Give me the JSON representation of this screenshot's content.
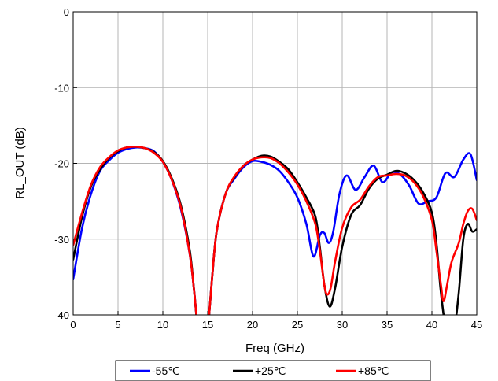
{
  "chart_data": {
    "type": "line",
    "title": "",
    "xlabel": "Freq (GHz)",
    "ylabel": "RL_OUT (dB)",
    "xlim": [
      0,
      45
    ],
    "ylim": [
      -40,
      0
    ],
    "xticks": [
      0,
      5,
      10,
      15,
      20,
      25,
      30,
      35,
      40,
      45
    ],
    "yticks": [
      0,
      -10,
      -20,
      -30,
      -40
    ],
    "grid": true,
    "legend_position": "bottom",
    "series": [
      {
        "name": "-55℃",
        "color": "#0000ff",
        "x": [
          0,
          1,
          2,
          3,
          4,
          5,
          6,
          7,
          8,
          9,
          10,
          11,
          12,
          13,
          13.5,
          14,
          14.5,
          15,
          15.5,
          16,
          17,
          18,
          19,
          20,
          21,
          22,
          23,
          24,
          25,
          26,
          26.8,
          27.5,
          28,
          28.5,
          29,
          29.7,
          30.5,
          31.5,
          32.5,
          33.5,
          34.5,
          35.5,
          36.5,
          37.5,
          38.5,
          39.5,
          40.5,
          41.5,
          42.5,
          43.5,
          44.3,
          45
        ],
        "y": [
          -35.3,
          -28.5,
          -24.0,
          -21.0,
          -19.6,
          -18.6,
          -18.1,
          -17.9,
          -18.0,
          -18.4,
          -19.8,
          -22.2,
          -26.0,
          -32.0,
          -37.0,
          -43.0,
          -45.0,
          -42.0,
          -35.0,
          -29.0,
          -24.0,
          -22.0,
          -20.5,
          -19.7,
          -19.8,
          -20.2,
          -21.0,
          -22.5,
          -24.5,
          -28.0,
          -32.3,
          -29.5,
          -29.2,
          -30.5,
          -29.0,
          -24.0,
          -21.6,
          -23.5,
          -21.8,
          -20.3,
          -22.5,
          -21.2,
          -21.5,
          -23.0,
          -25.3,
          -25.0,
          -24.5,
          -21.3,
          -21.8,
          -19.5,
          -18.8,
          -22.2
        ]
      },
      {
        "name": "+25℃",
        "color": "#000000",
        "x": [
          0,
          1,
          2,
          3,
          4,
          5,
          6,
          7,
          8,
          9,
          10,
          11,
          12,
          13,
          13.5,
          14,
          14.5,
          15,
          15.5,
          16,
          17,
          18,
          19,
          20,
          21,
          22,
          23,
          24,
          25,
          26,
          27,
          27.5,
          28,
          28.6,
          29.2,
          30,
          31,
          32,
          33,
          34,
          35,
          36,
          37,
          38,
          39,
          40,
          40.5,
          41,
          41.5,
          42,
          42.5,
          43,
          43.5,
          44,
          44.5,
          45
        ],
        "y": [
          -32.7,
          -27.0,
          -23.0,
          -20.8,
          -19.3,
          -18.4,
          -17.9,
          -17.8,
          -18.0,
          -18.5,
          -19.7,
          -22.0,
          -25.5,
          -31.5,
          -37.0,
          -43.0,
          -45.0,
          -42.0,
          -35.0,
          -29.0,
          -24.0,
          -21.8,
          -20.3,
          -19.5,
          -19.0,
          -19.1,
          -19.8,
          -20.8,
          -22.5,
          -24.5,
          -27.0,
          -31.0,
          -36.0,
          -38.9,
          -36.5,
          -31.0,
          -26.8,
          -25.5,
          -23.3,
          -22.0,
          -21.5,
          -21.0,
          -21.3,
          -22.2,
          -23.8,
          -26.5,
          -30.5,
          -37.0,
          -41.5,
          -43.5,
          -42.0,
          -37.0,
          -30.0,
          -28.0,
          -29.0,
          -28.7
        ]
      },
      {
        "name": "+85℃",
        "color": "#ff0000",
        "x": [
          0,
          1,
          2,
          3,
          4,
          5,
          6,
          7,
          8,
          9,
          10,
          11,
          12,
          13,
          13.5,
          14,
          14.5,
          15,
          15.5,
          16,
          17,
          18,
          19,
          20,
          21,
          22,
          23,
          24,
          25,
          26,
          27,
          27.5,
          28,
          28.3,
          28.7,
          29.2,
          30,
          31,
          32,
          33,
          34,
          35,
          36,
          37,
          38,
          39,
          40,
          40.5,
          41,
          41.3,
          41.7,
          42.2,
          43,
          43.5,
          44,
          44.5,
          45
        ],
        "y": [
          -30.8,
          -26.5,
          -22.8,
          -20.5,
          -19.2,
          -18.3,
          -17.9,
          -17.8,
          -18.0,
          -18.6,
          -19.8,
          -22.2,
          -25.8,
          -32.0,
          -37.0,
          -43.0,
          -45.0,
          -42.0,
          -35.0,
          -29.0,
          -24.0,
          -21.7,
          -20.3,
          -19.5,
          -19.2,
          -19.3,
          -20.0,
          -21.2,
          -22.8,
          -25.0,
          -28.0,
          -31.5,
          -36.0,
          -37.3,
          -36.5,
          -33.0,
          -28.5,
          -25.8,
          -24.8,
          -23.0,
          -21.8,
          -21.6,
          -21.4,
          -21.6,
          -22.5,
          -24.3,
          -27.5,
          -31.5,
          -36.0,
          -38.2,
          -36.0,
          -33.0,
          -30.5,
          -28.0,
          -26.3,
          -26.0,
          -27.5
        ]
      }
    ]
  }
}
